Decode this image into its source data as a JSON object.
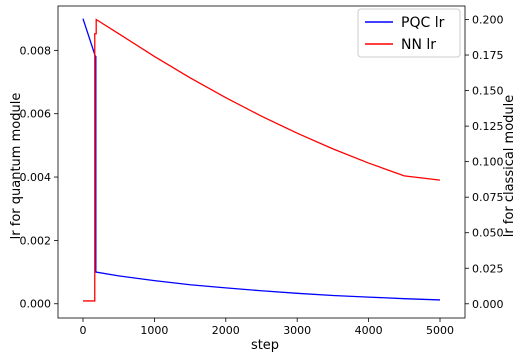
{
  "chart_data": {
    "type": "line",
    "xlabel": "step",
    "ylabel_left": "lr for quantum module",
    "ylabel_right": "lr for classical module",
    "xlim": [
      -350,
      5350
    ],
    "ylim_left": [
      -0.00045,
      0.0094
    ],
    "ylim_right": [
      -0.01,
      0.2095
    ],
    "x_ticks": [
      0,
      1000,
      2000,
      3000,
      4000,
      5000
    ],
    "y_left_ticks": [
      0.0,
      0.002,
      0.004,
      0.006,
      0.008
    ],
    "y_left_tick_labels": [
      "0.000",
      "0.002",
      "0.004",
      "0.006",
      "0.008"
    ],
    "y_right_ticks": [
      0.0,
      0.025,
      0.05,
      0.075,
      0.1,
      0.125,
      0.15,
      0.175,
      0.2
    ],
    "y_right_tick_labels": [
      "0.000",
      "0.025",
      "0.050",
      "0.075",
      "0.100",
      "0.125",
      "0.150",
      "0.175",
      "0.200"
    ],
    "grid": false,
    "legend_position": "top-right",
    "series": [
      {
        "name": "PQC lr",
        "color": "#0000ff",
        "axis": "left",
        "x": [
          0,
          175,
          180,
          180,
          500,
          1000,
          1500,
          2000,
          2500,
          3000,
          3500,
          4000,
          4500,
          5000
        ],
        "y": [
          0.009,
          0.0078,
          0.0078,
          0.001,
          0.00088,
          0.00073,
          0.0006,
          0.0005,
          0.00041,
          0.00033,
          0.00026,
          0.00021,
          0.00016,
          0.00012
        ]
      },
      {
        "name": "NN lr",
        "color": "#ff0000",
        "axis": "right",
        "x": [
          0,
          165,
          165,
          185,
          185,
          500,
          1000,
          1500,
          2000,
          2500,
          3000,
          3500,
          4000,
          4500,
          5000
        ],
        "y": [
          0.002,
          0.002,
          0.19,
          0.19,
          0.2,
          0.19,
          0.174,
          0.159,
          0.145,
          0.132,
          0.12,
          0.109,
          0.099,
          0.09,
          0.087
        ]
      }
    ]
  }
}
